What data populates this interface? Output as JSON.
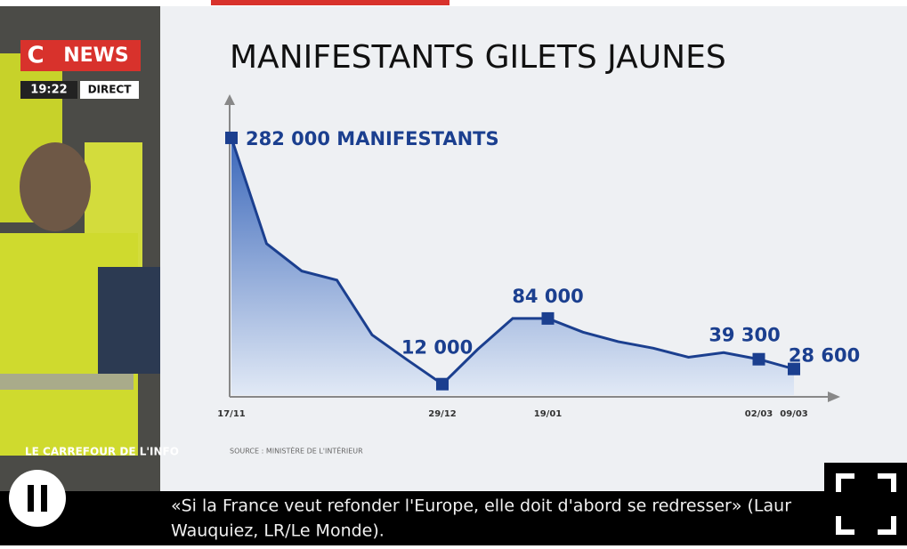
{
  "overlay": {
    "logo_c": "C",
    "logo_news": "NEWS",
    "time": "19:22",
    "live": "DIRECT",
    "program": "LE CARREFOUR DE L'INFO"
  },
  "ticker": {
    "line1": "«Si la France veut refonder l'Europe, elle doit d'abord se redresser» (Laur",
    "line2": "Wauquiez, LR/Le Monde)."
  },
  "chart_data": {
    "type": "area",
    "title": "MANIFESTANTS GILETS JAUNES",
    "source": "SOURCE : MINISTÈRE DE L'INTÉRIEUR",
    "categories": [
      "17/11",
      null,
      null,
      null,
      null,
      null,
      "29/12",
      null,
      null,
      "19/01",
      null,
      null,
      null,
      null,
      null,
      "02/03",
      "09/03"
    ],
    "values": [
      282000,
      166000,
      136000,
      126000,
      66000,
      38600,
      12000,
      50000,
      84000,
      84000,
      69000,
      58600,
      51400,
      41500,
      46600,
      39300,
      28600
    ],
    "value_labels": [
      "282 000 MANIFESTANTS",
      null,
      null,
      null,
      null,
      null,
      "12 000",
      null,
      null,
      "84 000",
      null,
      null,
      null,
      null,
      null,
      "39 300",
      "28 600"
    ],
    "color": "#1b3f8f",
    "ylim": [
      0,
      320000
    ]
  }
}
